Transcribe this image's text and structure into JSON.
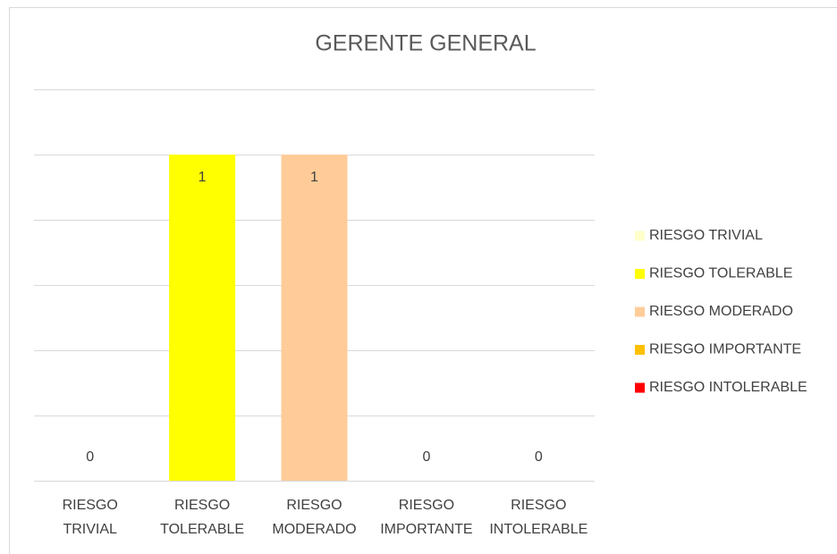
{
  "chart_data": {
    "type": "bar",
    "title": "GERENTE GENERAL",
    "categories": [
      "RIESGO TRIVIAL",
      "RIESGO TOLERABLE",
      "RIESGO MODERADO",
      "RIESGO IMPORTANTE",
      "RIESGO INTOLERABLE"
    ],
    "values": [
      0,
      1,
      1,
      0,
      0
    ],
    "colors": [
      "#FFFFCC",
      "#FFFF00",
      "#FFCC99",
      "#FFC000",
      "#FF0000"
    ],
    "ylim": [
      0,
      1.2
    ],
    "yticks": [
      0,
      0.2,
      0.4,
      0.6,
      0.8,
      1,
      1.2
    ],
    "grid": true,
    "legend": "right"
  }
}
